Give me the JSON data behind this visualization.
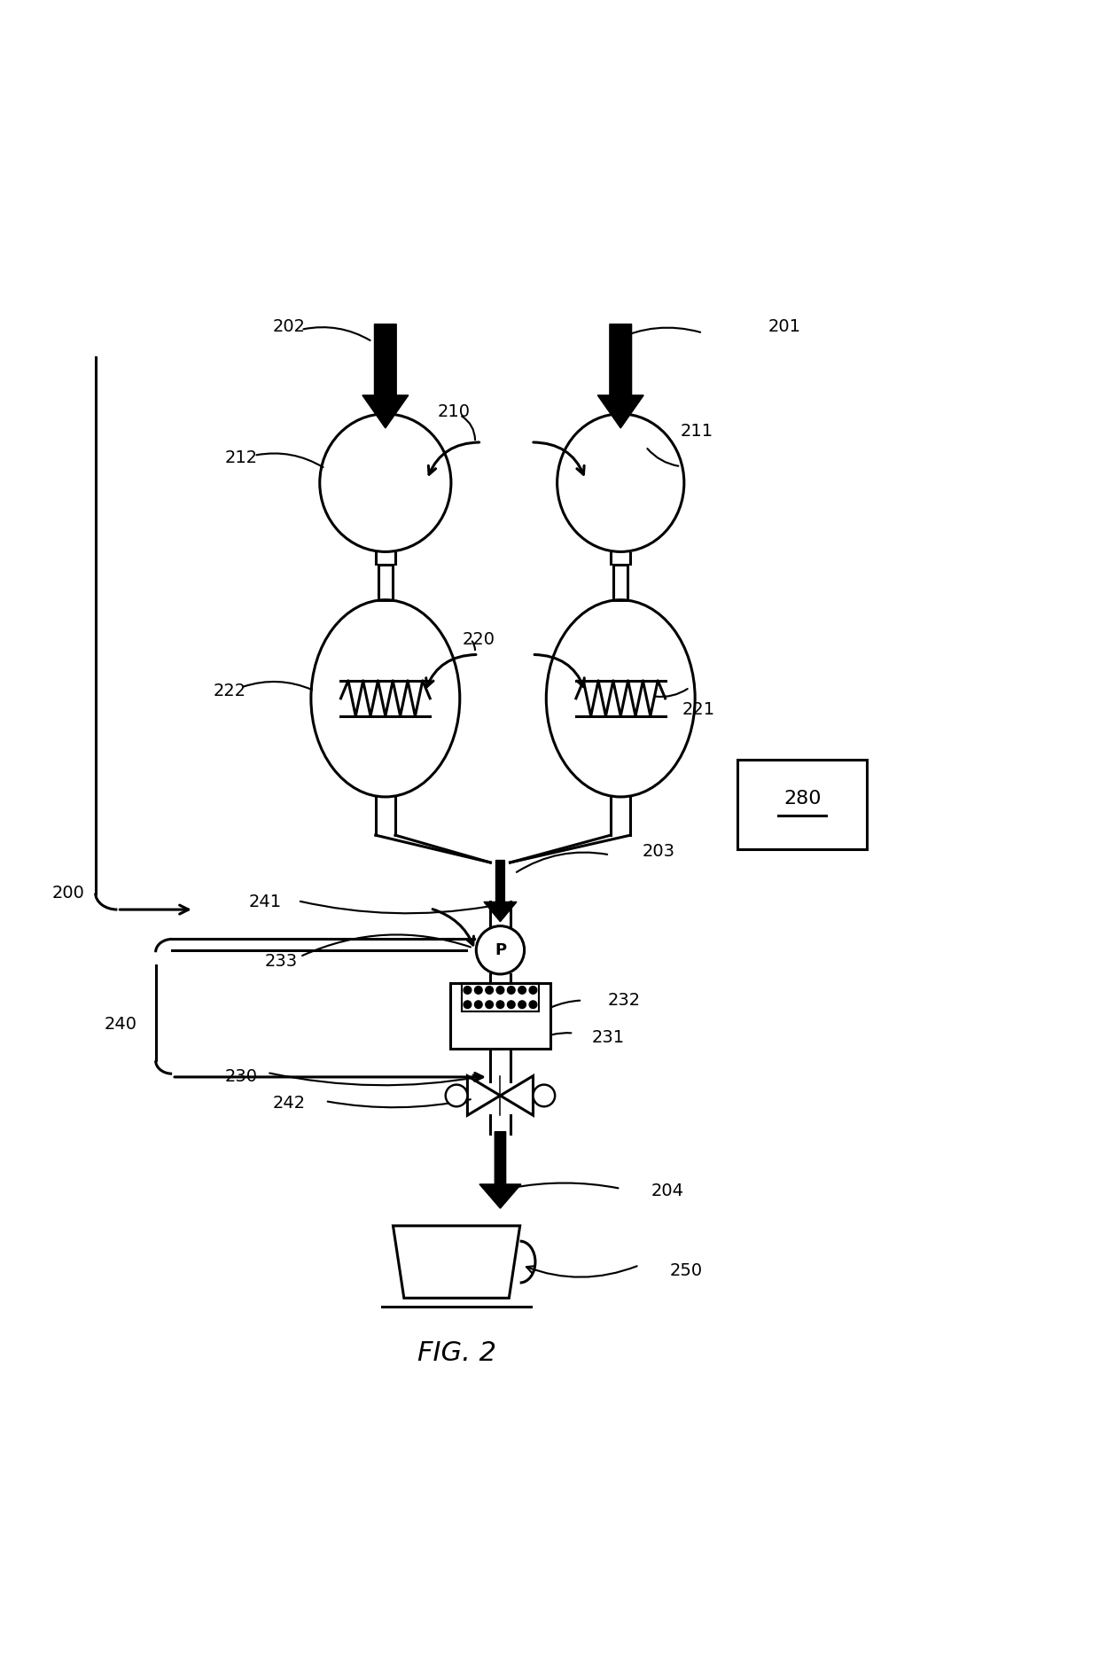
{
  "bg_color": "#ffffff",
  "line_color": "#000000",
  "title": "FIG. 2",
  "lw": 2.2,
  "lw_thick": 3.5
}
